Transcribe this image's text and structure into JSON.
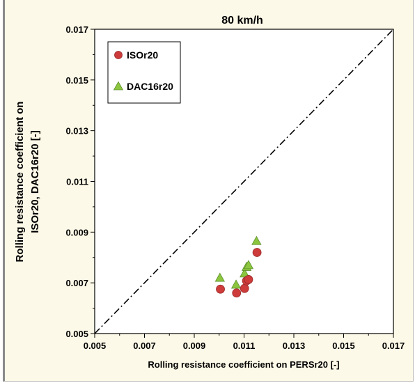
{
  "chart_data": {
    "type": "scatter",
    "title": "80 km/h",
    "xlabel": "Rolling resistance coefficient on PERSr20 [-]",
    "ylabel_lines": [
      "Rolling resistance coefficient on",
      "ISOr20, DAC16r20  [-]"
    ],
    "xlim": [
      0.005,
      0.017
    ],
    "ylim": [
      0.005,
      0.017
    ],
    "x_ticks": [
      "0.005",
      "0.007",
      "0.009",
      "0.011",
      "0.013",
      "0.015",
      "0.017"
    ],
    "y_ticks": [
      "0.005",
      "0.007",
      "0.009",
      "0.011",
      "0.013",
      "0.015",
      "0.017"
    ],
    "grid": false,
    "legend_position": "top-left",
    "reference_line": {
      "style": "dash-dot",
      "from": [
        0.005,
        0.005
      ],
      "to": [
        0.017,
        0.017
      ]
    },
    "series": [
      {
        "name": "ISOr20",
        "marker": "circle",
        "color": "#cd3b3b",
        "x": [
          0.01005,
          0.0107,
          0.01102,
          0.0111,
          0.01118,
          0.01152
        ],
        "y": [
          0.00675,
          0.0066,
          0.00678,
          0.00708,
          0.00713,
          0.0082
        ]
      },
      {
        "name": "DAC16r20",
        "marker": "triangle",
        "color": "#8cc63f",
        "x": [
          0.01003,
          0.01068,
          0.01102,
          0.0111,
          0.01118,
          0.0115
        ],
        "y": [
          0.0072,
          0.00693,
          0.00737,
          0.00763,
          0.0077,
          0.00865
        ]
      }
    ]
  }
}
